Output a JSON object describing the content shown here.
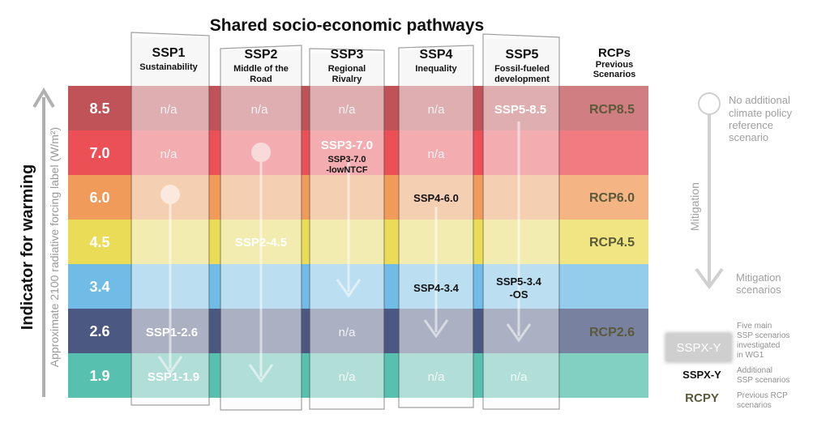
{
  "title": "Shared socio-economic pathways",
  "y_axis": {
    "main_label": "Indicator for warming",
    "sub_label": "Approximate 2100 radiative forcing label (W/m²)"
  },
  "levels": [
    {
      "value": "8.5",
      "color": "#b5353a"
    },
    {
      "value": "7.0",
      "color": "#e8313a"
    },
    {
      "value": "6.0",
      "color": "#ee8a3e"
    },
    {
      "value": "4.5",
      "color": "#e7d63b"
    },
    {
      "value": "3.4",
      "color": "#58b0e2"
    },
    {
      "value": "2.6",
      "color": "#2b3b6b"
    },
    {
      "value": "1.9",
      "color": "#3bb5a0"
    }
  ],
  "ssps": [
    {
      "name": "SSP1",
      "desc1": "Sustainability",
      "desc2": ""
    },
    {
      "name": "SSP2",
      "desc1": "Middle of the",
      "desc2": "Road"
    },
    {
      "name": "SSP3",
      "desc1": "Regional",
      "desc2": "Rivalry"
    },
    {
      "name": "SSP4",
      "desc1": "Inequality",
      "desc2": ""
    },
    {
      "name": "SSP5",
      "desc1": "Fossil-fueled",
      "desc2": "development"
    }
  ],
  "rcp_header": {
    "title": "RCPs",
    "sub1": "Previous",
    "sub2": "Scenarios"
  },
  "rcps": [
    "RCP8.5",
    "RCP6.0",
    "RCP4.5",
    "RCP2.6"
  ],
  "na_label": "n/a",
  "scenarios": {
    "ssp1_26": "SSP1-2.6",
    "ssp1_19": "SSP1-1.9",
    "ssp2_45": "SSP2-4.5",
    "ssp3_70": "SSP3-7.0",
    "ssp3_70_lowntcf_1": "SSP3-7.0",
    "ssp3_70_lowntcf_2": "-lowNTCF",
    "ssp4_60": "SSP4-6.0",
    "ssp4_34": "SSP4-3.4",
    "ssp5_85": "SSP5-8.5",
    "ssp5_34_1": "SSP5-3.4",
    "ssp5_34_2": "-OS"
  },
  "right_legend": {
    "no_policy": [
      "No additional",
      "climate policy",
      "reference",
      "scenario"
    ],
    "mitigation": "Mitigation",
    "mitigation_scen": [
      "Mitigation",
      "scenarios"
    ]
  },
  "key": {
    "main_sample": "SSPX-Y",
    "main_desc": [
      "Five main",
      "SSP scenarios",
      "investigated",
      "in WG1"
    ],
    "add_sample": "SSPX-Y",
    "add_desc": [
      "Additional",
      "SSP scenarios"
    ],
    "rcp_sample": "RCPY",
    "rcp_desc": [
      "Previous RCP",
      "scenarios"
    ]
  },
  "colors": {
    "rcp_text": "#5a5a3a",
    "panel": "#f2f2f2",
    "panel_border": "#555555"
  }
}
